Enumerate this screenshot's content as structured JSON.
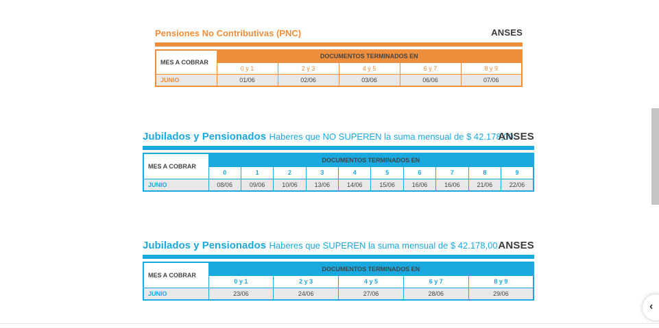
{
  "pnc": {
    "title": "Pensiones No Contributivas (PNC)",
    "brand": "ANSES",
    "mes_header": "MES A COBRAR",
    "docs_header": "DOCUMENTOS TERMINADOS EN",
    "digits": [
      "0 y 1",
      "2 y 3",
      "4 y 5",
      "6 y 7",
      "8 y 9"
    ],
    "month": "JUNIO",
    "dates": [
      "01/06",
      "02/06",
      "03/06",
      "06/06",
      "07/06"
    ]
  },
  "jub_no_superen": {
    "title": "Jubilados y Pensionados",
    "subtitle": "Haberes que NO SUPEREN la suma mensual de $ 42.178,00",
    "brand": "ANSES",
    "mes_header": "MES A COBRAR",
    "docs_header": "DOCUMENTOS TERMINADOS EN",
    "digits": [
      "0",
      "1",
      "2",
      "3",
      "4",
      "5",
      "6",
      "7",
      "8",
      "9"
    ],
    "month": "JUNIO",
    "dates": [
      "08/06",
      "09/06",
      "10/06",
      "13/06",
      "14/06",
      "15/06",
      "16/06",
      "16/06",
      "21/06",
      "22/06"
    ]
  },
  "jub_superen": {
    "title": "Jubilados y Pensionados",
    "subtitle": "Haberes que SUPEREN la suma mensual de $ 42.178,00",
    "brand": "ANSES",
    "mes_header": "MES A COBRAR",
    "docs_header": "DOCUMENTOS TERMINADOS EN",
    "digits": [
      "0 y 1",
      "2 y 3",
      "4 y 5",
      "6 y 7",
      "8 y 9"
    ],
    "month": "JUNIO",
    "dates": [
      "23/06",
      "24/06",
      "27/06",
      "28/06",
      "29/06"
    ]
  },
  "ui": {
    "nav_icon": "chevron-left-icon"
  }
}
